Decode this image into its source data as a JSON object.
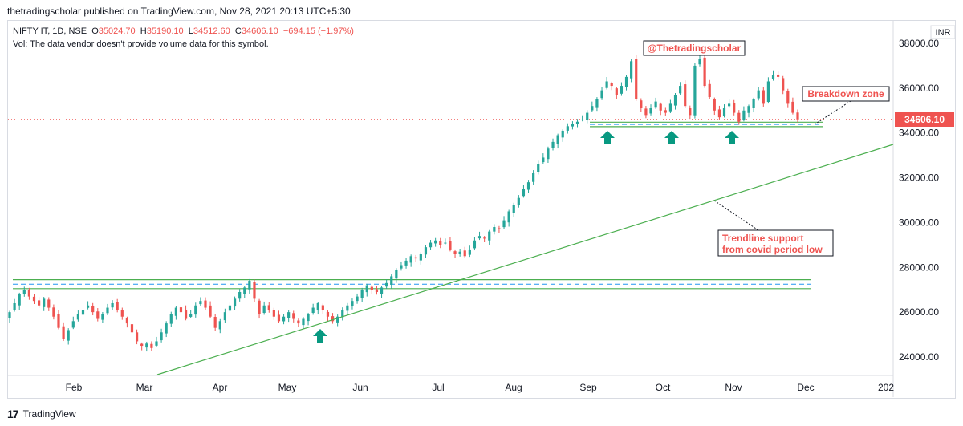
{
  "header": {
    "published_by": "thetradingscholar published on TradingView.com, Nov 28, 2021 20:13 UTC+5:30"
  },
  "legend": {
    "symbol": "NIFTY IT, 1D, NSE",
    "open_label": "O",
    "open": "35024.70",
    "high_label": "H",
    "high": "35190.10",
    "low_label": "L",
    "low": "34512.60",
    "close_label": "C",
    "close": "34606.10",
    "change": "−694.15 (−1.97%)",
    "volume_note": "Vol: The data vendor doesn't provide volume data for this symbol."
  },
  "footer": {
    "logo": "17",
    "brand": "TradingView"
  },
  "chart_data": {
    "type": "candlestick",
    "currency": "INR",
    "ylim": [
      23500,
      38800
    ],
    "y_ticks": [
      "24000.00",
      "26000.00",
      "28000.00",
      "30000.00",
      "32000.00",
      "34000.00",
      "36000.00",
      "38000.00"
    ],
    "x_ticks": [
      "Feb",
      "Mar",
      "Apr",
      "May",
      "Jun",
      "Jul",
      "Aug",
      "Sep",
      "Oct",
      "Nov",
      "Dec",
      "202"
    ],
    "last_price": "34606.10",
    "close_series": [
      26000,
      26400,
      26800,
      27000,
      26700,
      26500,
      26300,
      26600,
      26200,
      25800,
      25300,
      24800,
      25200,
      25600,
      25900,
      26100,
      26300,
      26000,
      25700,
      25900,
      26200,
      26400,
      26100,
      25800,
      25500,
      25100,
      24700,
      24500,
      24600,
      24400,
      24700,
      25100,
      25500,
      25900,
      26200,
      26000,
      25700,
      25900,
      26300,
      26500,
      26200,
      25800,
      25300,
      25600,
      26000,
      26300,
      26600,
      26900,
      27100,
      27400,
      26600,
      25900,
      26300,
      26100,
      25800,
      25600,
      25800,
      26000,
      25700,
      25500,
      25700,
      25900,
      26200,
      26400,
      26100,
      25800,
      25600,
      25800,
      26100,
      26300,
      26500,
      26700,
      27000,
      27200,
      27000,
      26900,
      27100,
      27300,
      27600,
      27900,
      28100,
      28300,
      28500,
      28400,
      28600,
      28900,
      29100,
      29200,
      29000,
      29100,
      28800,
      28600,
      28700,
      28500,
      28800,
      29200,
      29400,
      29300,
      29600,
      29800,
      29700,
      30100,
      30500,
      30800,
      31100,
      31500,
      31800,
      32200,
      32600,
      32900,
      33300,
      33600,
      33900,
      34100,
      34300,
      34400,
      34500,
      34600,
      34900,
      35200,
      35500,
      35900,
      36300,
      36100,
      35700,
      36100,
      36500,
      37200,
      35500,
      35100,
      34800,
      35100,
      35400,
      35000,
      34900,
      35300,
      35700,
      36100,
      35200,
      34800,
      37000,
      37300,
      36100,
      35600,
      35000,
      34700,
      35100,
      35300,
      34900,
      34500,
      35000,
      35200,
      35500,
      35900,
      35300,
      36300,
      36600,
      36500,
      35900,
      35300,
      34900,
      34606
    ],
    "annotations": [
      {
        "text": "@Thetradingscholar"
      },
      {
        "text": "Breakdown zone"
      },
      {
        "text": "Trendline support from covid period low",
        "lines": [
          "Trendline support",
          "from covid period low"
        ]
      }
    ],
    "support_zone_low": [
      27050,
      27450
    ],
    "support_zone_high": [
      34280,
      34480
    ],
    "trendline": [
      {
        "date": "Feb 2021",
        "y": 23500
      },
      {
        "date": "Dec 2021",
        "y": 33500
      }
    ]
  },
  "colors": {
    "up": "#26a69a",
    "down": "#ef5350",
    "zone": "#4caf50",
    "zone_dash": "#2196f3",
    "arrow": "#089981",
    "price_line": "#ef5350"
  }
}
